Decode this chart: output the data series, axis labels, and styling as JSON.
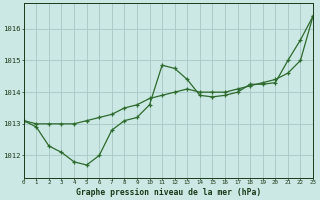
{
  "line1_x": [
    0,
    1,
    2,
    3,
    4,
    5,
    6,
    7,
    8,
    9,
    10,
    11,
    12,
    13,
    14,
    15,
    16,
    17,
    18,
    19,
    20,
    21,
    22,
    23
  ],
  "line1_y": [
    1013.1,
    1013.0,
    1013.0,
    1013.0,
    1013.0,
    1013.1,
    1013.2,
    1013.3,
    1013.5,
    1013.6,
    1013.8,
    1013.9,
    1014.0,
    1014.1,
    1014.0,
    1014.0,
    1014.0,
    1014.1,
    1014.2,
    1014.3,
    1014.4,
    1014.6,
    1015.0,
    1016.4
  ],
  "line2_x": [
    0,
    1,
    2,
    3,
    4,
    5,
    6,
    7,
    8,
    9,
    10,
    11,
    12,
    13,
    14,
    15,
    16,
    17,
    18,
    19,
    20,
    21,
    22,
    23
  ],
  "line2_y": [
    1013.1,
    1012.9,
    1012.3,
    1012.1,
    1011.8,
    1011.7,
    1012.0,
    1012.8,
    1013.1,
    1013.2,
    1013.6,
    1014.85,
    1014.75,
    1014.4,
    1013.9,
    1013.85,
    1013.9,
    1014.0,
    1014.25,
    1014.25,
    1014.3,
    1015.0,
    1015.65,
    1016.4
  ],
  "line_color": "#2d6a2d",
  "bg_color": "#cce8e4",
  "grid_color": "#aaccca",
  "label_color": "#1a3a1a",
  "xlabel": "Graphe pression niveau de la mer (hPa)",
  "yticks": [
    1012,
    1013,
    1014,
    1015,
    1016
  ],
  "xtick_labels": [
    "0",
    "1",
    "2",
    "3",
    "4",
    "5",
    "6",
    "7",
    "8",
    "9",
    "10",
    "11",
    "12",
    "13",
    "14",
    "15",
    "16",
    "17",
    "18",
    "19",
    "20",
    "21",
    "22",
    "23"
  ],
  "xticks": [
    0,
    1,
    2,
    3,
    4,
    5,
    6,
    7,
    8,
    9,
    10,
    11,
    12,
    13,
    14,
    15,
    16,
    17,
    18,
    19,
    20,
    21,
    22,
    23
  ],
  "ylim": [
    1011.3,
    1016.8
  ],
  "xlim": [
    0,
    23
  ]
}
